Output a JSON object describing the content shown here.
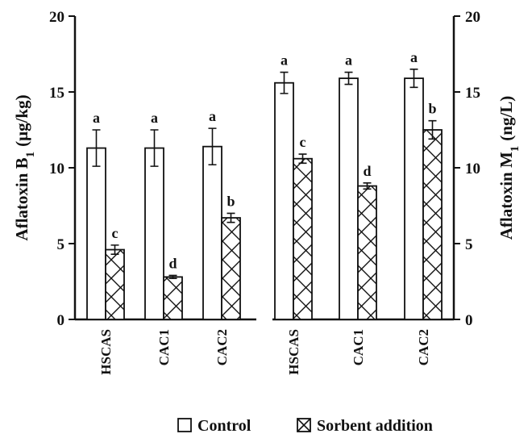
{
  "chart_data": {
    "type": "bar",
    "left_panel": {
      "categories": [
        "HSCAS",
        "CAC1",
        "CAC2"
      ],
      "ylabel": "Aflatoxin B",
      "ylabel_sub": "1",
      "ylabel_unit": "(μg/kg)",
      "ylim": [
        0,
        20
      ],
      "yticks": [
        0,
        5,
        10,
        15,
        20
      ],
      "series": [
        {
          "name": "Control",
          "values": [
            11.3,
            11.3,
            11.4
          ],
          "errors": [
            1.2,
            1.2,
            1.2
          ],
          "labels": [
            "a",
            "a",
            "a"
          ]
        },
        {
          "name": "Sorbent addition",
          "values": [
            4.6,
            2.8,
            6.7
          ],
          "errors": [
            0.3,
            0.1,
            0.3
          ],
          "labels": [
            "c",
            "d",
            "b"
          ]
        }
      ]
    },
    "right_panel": {
      "categories": [
        "HSCAS",
        "CAC1",
        "CAC2"
      ],
      "ylabel": "Aflatoxin M",
      "ylabel_sub": "1",
      "ylabel_unit": "(ng/L)",
      "ylim": [
        0,
        20
      ],
      "yticks": [
        0,
        5,
        10,
        15,
        20
      ],
      "series": [
        {
          "name": "Control",
          "values": [
            15.6,
            15.9,
            15.9
          ],
          "errors": [
            0.7,
            0.4,
            0.6
          ],
          "labels": [
            "a",
            "a",
            "a"
          ]
        },
        {
          "name": "Sorbent addition",
          "values": [
            10.6,
            8.8,
            12.5
          ],
          "errors": [
            0.3,
            0.2,
            0.6
          ],
          "labels": [
            "c",
            "d",
            "b"
          ]
        }
      ]
    },
    "legend": {
      "placement": "bottom",
      "items": [
        {
          "label": "Control",
          "pattern": "open"
        },
        {
          "label": "Sorbent addition",
          "pattern": "cross-hatch"
        }
      ]
    }
  }
}
